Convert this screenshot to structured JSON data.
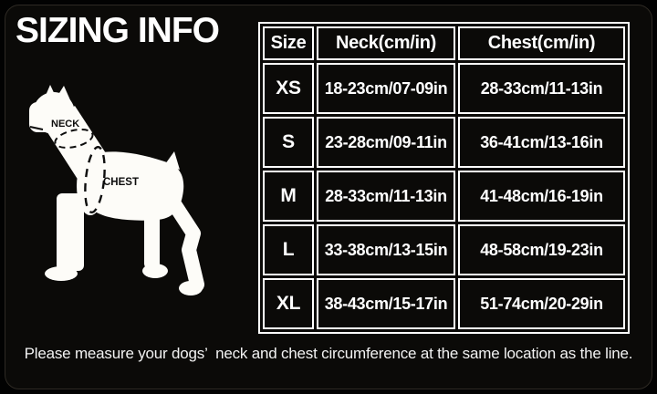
{
  "header": {
    "title": "SIZING INFO"
  },
  "diagram": {
    "neck_label": "NECK",
    "chest_label": "CHEST"
  },
  "chart_data": {
    "type": "table",
    "columns": [
      "Size",
      "Neck(cm/in)",
      "Chest(cm/in)"
    ],
    "rows": [
      [
        "XS",
        "18-23cm/07-09in",
        "28-33cm/11-13in"
      ],
      [
        "S",
        "23-28cm/09-11in",
        "36-41cm/13-16in"
      ],
      [
        "M",
        "28-33cm/11-13in",
        "41-48cm/16-19in"
      ],
      [
        "L",
        "33-38cm/13-15in",
        "48-58cm/19-23in"
      ],
      [
        "XL",
        "38-43cm/15-17in",
        "51-74cm/20-29in"
      ]
    ]
  },
  "footer": {
    "note": "Please measure your dogs’  neck and chest circumference at the same location as the line."
  },
  "colors": {
    "background": "#000000",
    "panel": "#0b0a08",
    "text": "#ffffff",
    "table_border": "#ffffff",
    "silhouette": "#fdfcf8",
    "annotation": "#0d0d0d"
  }
}
